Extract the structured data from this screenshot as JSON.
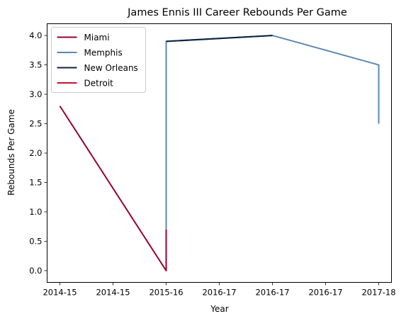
{
  "chart_data": {
    "type": "line",
    "title": "James Ennis III Career Rebounds Per Game",
    "xlabel": "Year",
    "ylabel": "Rebounds Per Game",
    "x_tick_labels": [
      "2014-15",
      "2014-15",
      "2015-16",
      "2016-17",
      "2016-17",
      "2016-17",
      "2017-18"
    ],
    "ylim": [
      -0.2,
      4.2
    ],
    "yticks": [
      "0.0",
      "0.5",
      "1.0",
      "1.5",
      "2.0",
      "2.5",
      "3.0",
      "3.5",
      "4.0"
    ],
    "legend_position": "top-left",
    "grid": false,
    "series": [
      {
        "name": "Miami",
        "color": "#98002E",
        "points": [
          {
            "season": "2014-15",
            "value": 2.8
          },
          {
            "season": "2015-16",
            "value": 0.0
          },
          {
            "season": "2015-16",
            "value": 0.7
          }
        ]
      },
      {
        "name": "Memphis",
        "color": "#5D86B5",
        "points": [
          {
            "season": "2015-16",
            "value": 0.7
          },
          {
            "season": "2015-16",
            "value": 3.9
          },
          {
            "season": "2016-17",
            "value": 4.0
          },
          {
            "season": "2017-18",
            "value": 3.5
          },
          {
            "season": "2017-18",
            "value": 2.5
          }
        ]
      },
      {
        "name": "New Orleans",
        "color": "#0C2340",
        "points": [
          {
            "season": "2015-16",
            "value": 3.9
          },
          {
            "season": "2016-17",
            "value": 4.0
          }
        ]
      },
      {
        "name": "Detroit",
        "color": "#C8102E",
        "points": []
      }
    ]
  }
}
